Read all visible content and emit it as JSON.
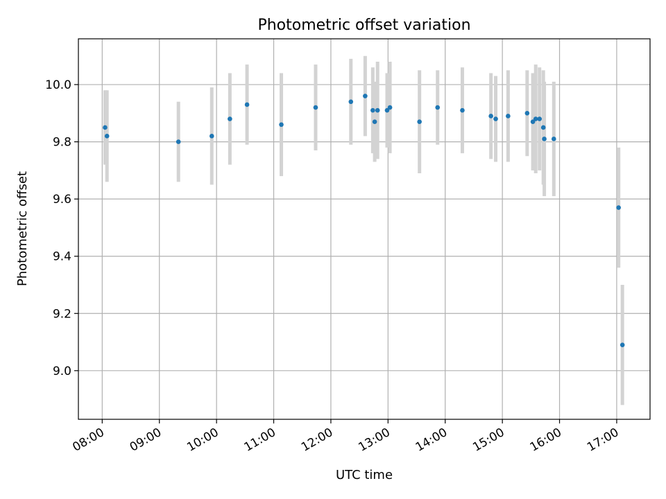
{
  "chart_data": {
    "type": "scatter",
    "title": "Photometric offset variation",
    "xlabel": "UTC time",
    "ylabel": "Photometric offset",
    "xlim": [
      "07:35",
      "17:35"
    ],
    "ylim": [
      8.83,
      10.16
    ],
    "x_ticks": [
      "08:00",
      "09:00",
      "10:00",
      "11:00",
      "12:00",
      "13:00",
      "14:00",
      "15:00",
      "16:00",
      "17:00"
    ],
    "y_ticks": [
      9.0,
      9.2,
      9.4,
      9.6,
      9.8,
      10.0
    ],
    "grid": true,
    "colors": {
      "points": "#1f77b4",
      "errorbars": "#d3d3d3",
      "grid": "#b0b0b0"
    },
    "points": [
      {
        "time": "08:03",
        "y": 9.85,
        "err": 0.13
      },
      {
        "time": "08:05",
        "y": 9.82,
        "err": 0.16
      },
      {
        "time": "09:20",
        "y": 9.8,
        "err": 0.14
      },
      {
        "time": "09:55",
        "y": 9.82,
        "err": 0.17
      },
      {
        "time": "10:14",
        "y": 9.88,
        "err": 0.16
      },
      {
        "time": "10:32",
        "y": 9.93,
        "err": 0.14
      },
      {
        "time": "11:08",
        "y": 9.86,
        "err": 0.18
      },
      {
        "time": "11:44",
        "y": 9.92,
        "err": 0.15
      },
      {
        "time": "12:21",
        "y": 9.94,
        "err": 0.15
      },
      {
        "time": "12:36",
        "y": 9.96,
        "err": 0.14
      },
      {
        "time": "12:44",
        "y": 9.91,
        "err": 0.15
      },
      {
        "time": "12:46",
        "y": 9.87,
        "err": 0.14
      },
      {
        "time": "12:49",
        "y": 9.91,
        "err": 0.17
      },
      {
        "time": "12:59",
        "y": 9.91,
        "err": 0.13
      },
      {
        "time": "13:02",
        "y": 9.92,
        "err": 0.16
      },
      {
        "time": "13:33",
        "y": 9.87,
        "err": 0.18
      },
      {
        "time": "13:52",
        "y": 9.92,
        "err": 0.13
      },
      {
        "time": "14:18",
        "y": 9.91,
        "err": 0.15
      },
      {
        "time": "14:48",
        "y": 9.89,
        "err": 0.15
      },
      {
        "time": "14:53",
        "y": 9.88,
        "err": 0.15
      },
      {
        "time": "15:06",
        "y": 9.89,
        "err": 0.16
      },
      {
        "time": "15:26",
        "y": 9.9,
        "err": 0.15
      },
      {
        "time": "15:32",
        "y": 9.87,
        "err": 0.17
      },
      {
        "time": "15:35",
        "y": 9.88,
        "err": 0.19
      },
      {
        "time": "15:39",
        "y": 9.88,
        "err": 0.18
      },
      {
        "time": "15:43",
        "y": 9.85,
        "err": 0.2
      },
      {
        "time": "15:44",
        "y": 9.81,
        "err": 0.2
      },
      {
        "time": "15:54",
        "y": 9.81,
        "err": 0.2
      },
      {
        "time": "17:02",
        "y": 9.57,
        "err": 0.21
      },
      {
        "time": "17:06",
        "y": 9.09,
        "err": 0.21
      }
    ]
  }
}
